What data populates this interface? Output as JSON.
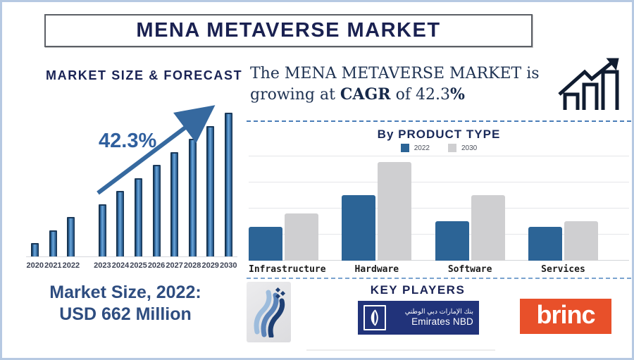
{
  "page": {
    "title": "MENA METAVERSE MARKET"
  },
  "left_panel": {
    "heading": "MARKET SIZE & FORECAST",
    "growth_annotation": "42.3%",
    "market_size_caption_line1": "Market Size, 2022:",
    "market_size_caption_line2": "USD 662 Million"
  },
  "right_panel": {
    "headline_line1": "The MENA METAVERSE MARKET is",
    "headline_prefix": "growing at ",
    "headline_bold1": "CAGR",
    "headline_mid": " of 42.3",
    "headline_bold2": "%",
    "product_chart_title": "By PRODUCT TYPE"
  },
  "key_players": {
    "heading": "KEY PLAYERS",
    "logos": [
      {
        "name": "abstract flame logo"
      },
      {
        "name": "Emirates NBD",
        "arabic": "بنك الإمارات دبي الوطني",
        "english": "Emirates NBD"
      },
      {
        "name": "brinc",
        "text": "brinc"
      }
    ]
  },
  "chart_data": [
    {
      "type": "bar",
      "title": "MARKET SIZE & FORECAST",
      "categories": [
        "2020",
        "2021",
        "2022",
        "2023",
        "2024",
        "2025",
        "2026",
        "2027",
        "2028",
        "2029",
        "2030"
      ],
      "values": [
        1,
        2,
        3,
        4,
        5,
        6,
        7,
        8,
        9,
        10,
        11
      ],
      "ylim": [
        0,
        11
      ],
      "unit": "relative bar height (no y-axis shown)",
      "known_point": "2022 = USD 662 Million",
      "annotation": "42.3% (CAGR growth arrow)",
      "bar_color": "#2f6ba7",
      "grid": false,
      "gap_after_index": 2
    },
    {
      "type": "bar",
      "title": "By PRODUCT TYPE",
      "categories": [
        "Infrastructure",
        "Hardware",
        "Software",
        "Services"
      ],
      "series": [
        {
          "name": "2022",
          "color": "#2c6496",
          "values": [
            1.3,
            2.5,
            1.5,
            1.3
          ]
        },
        {
          "name": "2030",
          "color": "#cfcfd1",
          "values": [
            1.8,
            3.75,
            2.5,
            1.5
          ]
        }
      ],
      "ylim": [
        0,
        4
      ],
      "grid": true,
      "legend_position": "top",
      "unit": "relative bar height (no y-axis shown)"
    }
  ]
}
